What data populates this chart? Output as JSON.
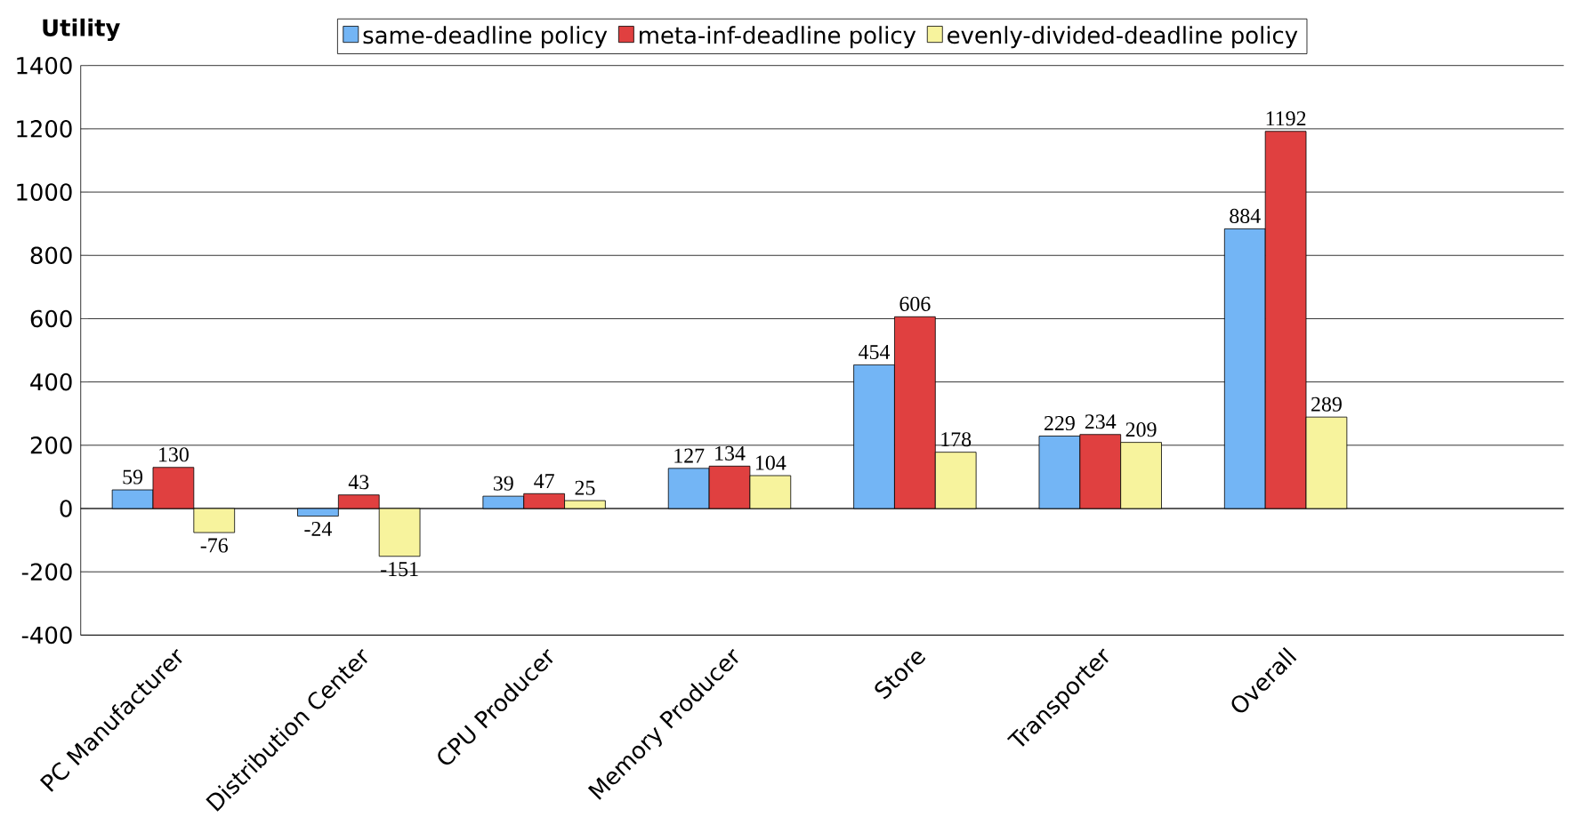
{
  "chart_data": {
    "type": "bar",
    "ylabel": "Utility",
    "categories": [
      "PC Manufacturer",
      "Distribution Center",
      "CPU Producer",
      "Memory Producer",
      "Store",
      "Transporter",
      "Overall",
      null
    ],
    "series": [
      {
        "name": "same-deadline policy",
        "color": "#73b5f5",
        "values": [
          59,
          -24,
          39,
          127,
          454,
          229,
          884,
          null
        ]
      },
      {
        "name": "meta-inf-deadline policy",
        "color": "#e04040",
        "values": [
          130,
          43,
          47,
          134,
          606,
          234,
          1192,
          null
        ]
      },
      {
        "name": "evenly-divided-deadline policy",
        "color": "#f7f39d",
        "values": [
          -76,
          -151,
          25,
          104,
          178,
          209,
          289,
          null
        ]
      }
    ],
    "ylim": [
      -400,
      1400
    ],
    "yticks": [
      -400,
      -200,
      0,
      200,
      400,
      600,
      800,
      1000,
      1200,
      1400
    ],
    "grid": "y",
    "legend": "top",
    "data_labels": true
  }
}
